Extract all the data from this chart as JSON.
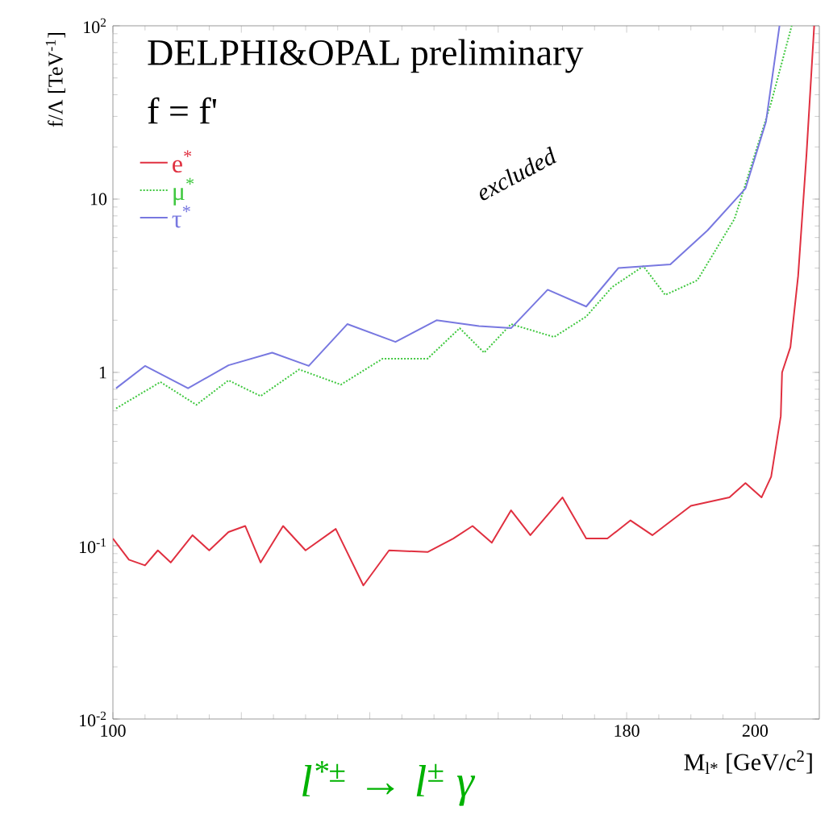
{
  "chart_data": {
    "type": "line",
    "title": "DELPHI&OPAL preliminary",
    "subtitle": "f = f'",
    "xlabel": "M$_{l*}$ [GeV/c$^{2}$]",
    "ylabel": "f/Λ [TeV$^{-1}$]",
    "log": "y",
    "legend": "top left",
    "xlim": [
      100,
      210
    ],
    "ylim": [
      0.01,
      100
    ],
    "xticks": [
      100,
      {
        "value": 120,
        "label": null
      },
      {
        "value": 140,
        "label": null
      },
      {
        "value": 160,
        "label": null
      },
      180,
      200
    ],
    "yticks": [
      {
        "value": 0.01,
        "label": "10$^{-2}$"
      },
      {
        "value": 0.1,
        "label": "10$^{-1}$"
      },
      1,
      10,
      {
        "value": 100,
        "label": "10$^{2}$"
      }
    ],
    "annotations": [
      "excluded",
      "l$^{*±}$ → l$^{±}$ γ"
    ],
    "series": [
      {
        "name": "e$^{*}$",
        "color": "#e03040",
        "line_style": "solid",
        "x": [
          100,
          102.5,
          105,
          107,
          109,
          112.4,
          115,
          118,
          120.6,
          123,
          126.5,
          130,
          134.7,
          139,
          143,
          149,
          153,
          156,
          159,
          162,
          165,
          170,
          173.7,
          177,
          180.6,
          184,
          190,
          196,
          198.5,
          201,
          202.5,
          204,
          204.2,
          205.5,
          206.7,
          208,
          209.2
        ],
        "values": [
          0.11,
          0.083,
          0.077,
          0.094,
          0.08,
          0.115,
          0.094,
          0.12,
          0.13,
          0.08,
          0.13,
          0.094,
          0.125,
          0.059,
          0.094,
          0.092,
          0.11,
          0.13,
          0.104,
          0.16,
          0.115,
          0.19,
          0.11,
          0.11,
          0.14,
          0.115,
          0.17,
          0.19,
          0.23,
          0.19,
          0.25,
          0.56,
          1.0,
          1.4,
          3.6,
          18,
          100
        ]
      },
      {
        "name": "μ$^{*}$",
        "color": "#40c840",
        "line_style": "dotted",
        "x": [
          100.5,
          107.4,
          113,
          118,
          123,
          129,
          135.5,
          142,
          149,
          154,
          157.8,
          162,
          168.7,
          173.7,
          177.7,
          182.6,
          186,
          191,
          196.8,
          202.5,
          205.7
        ],
        "values": [
          0.62,
          0.88,
          0.65,
          0.9,
          0.73,
          1.04,
          0.85,
          1.2,
          1.2,
          1.8,
          1.3,
          1.9,
          1.6,
          2.1,
          3.1,
          4.1,
          2.8,
          3.4,
          7.7,
          36,
          100
        ]
      },
      {
        "name": "τ$^{*}$",
        "color": "#7878e0",
        "line_style": "solid",
        "x": [
          100.5,
          105,
          111.7,
          118,
          124.8,
          130.5,
          136.5,
          144,
          150.4,
          157,
          162,
          167.7,
          173.7,
          178.7,
          186.8,
          192.6,
          198.5,
          201.7,
          203.8
        ],
        "values": [
          0.81,
          1.09,
          0.81,
          1.1,
          1.3,
          1.09,
          1.9,
          1.5,
          2.0,
          1.85,
          1.8,
          3.0,
          2.4,
          4.0,
          4.2,
          6.6,
          11.5,
          28,
          100
        ]
      }
    ]
  }
}
